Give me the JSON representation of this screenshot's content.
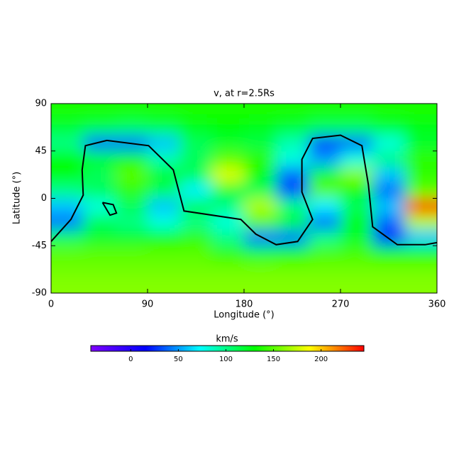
{
  "chart_data": {
    "type": "heatmap",
    "title": "v, at r=2.5Rs",
    "xlabel": "Longitude (°)",
    "ylabel": "Latitude (°)",
    "x": [
      15,
      45,
      75,
      105,
      135,
      165,
      195,
      225,
      255,
      285,
      315,
      345
    ],
    "y": [
      82.5,
      67.5,
      52.5,
      37.5,
      22.5,
      7.5,
      -7.5,
      -22.5,
      -37.5,
      -52.5,
      -67.5,
      -82.5
    ],
    "z": [
      [
        135,
        135,
        135,
        135,
        135,
        135,
        135,
        135,
        135,
        135,
        135,
        135
      ],
      [
        120,
        115,
        110,
        115,
        125,
        130,
        125,
        120,
        110,
        110,
        120,
        125
      ],
      [
        100,
        40,
        40,
        60,
        110,
        120,
        115,
        90,
        30,
        40,
        80,
        120
      ],
      [
        130,
        120,
        130,
        90,
        110,
        150,
        140,
        80,
        50,
        80,
        100,
        140
      ],
      [
        130,
        110,
        150,
        120,
        110,
        180,
        130,
        40,
        120,
        160,
        60,
        140
      ],
      [
        100,
        110,
        140,
        110,
        70,
        120,
        110,
        30,
        150,
        130,
        40,
        150
      ],
      [
        60,
        80,
        110,
        60,
        110,
        100,
        170,
        100,
        70,
        110,
        60,
        230
      ],
      [
        40,
        110,
        100,
        80,
        100,
        80,
        150,
        120,
        40,
        130,
        40,
        170
      ],
      [
        110,
        120,
        120,
        130,
        140,
        100,
        40,
        40,
        100,
        120,
        20,
        60
      ],
      [
        150,
        150,
        150,
        150,
        150,
        140,
        120,
        130,
        145,
        145,
        130,
        130
      ],
      [
        155,
        155,
        155,
        155,
        155,
        155,
        155,
        155,
        155,
        155,
        155,
        155
      ],
      [
        160,
        160,
        160,
        160,
        160,
        160,
        160,
        160,
        160,
        160,
        160,
        160
      ]
    ],
    "contours": [
      {
        "x": [
          0,
          18.5,
          30,
          29,
          32,
          52,
          91,
          114,
          124,
          177,
          191,
          210,
          230,
          244,
          234,
          234,
          244,
          270,
          290,
          296,
          300,
          323,
          349,
          360
        ],
        "y": [
          -41,
          -20,
          3,
          27,
          50,
          55,
          50,
          27,
          -12,
          -20,
          -34,
          -44,
          -41,
          -20,
          6,
          37,
          57,
          60,
          50,
          13,
          -27,
          -44,
          -44,
          -42
        ]
      },
      {
        "x": [
          48,
          58,
          61,
          55,
          48
        ],
        "y": [
          -4,
          -6,
          -14,
          -16,
          -4
        ]
      }
    ],
    "contour_color": "#000000",
    "xlim": [
      0,
      360
    ],
    "xticks": [
      0,
      90,
      180,
      270,
      360
    ],
    "ylim": [
      -90,
      90
    ],
    "yticks": [
      -90,
      -45,
      0,
      45,
      90
    ],
    "colormap": [
      "#7f00ff",
      "#0000ff",
      "#00ffff",
      "#00ff00",
      "#ffff00",
      "#ff0000"
    ],
    "colorbar_label": "km/s",
    "clim": [
      -42,
      245
    ],
    "cticks": [
      0,
      50,
      100,
      150,
      200
    ]
  }
}
